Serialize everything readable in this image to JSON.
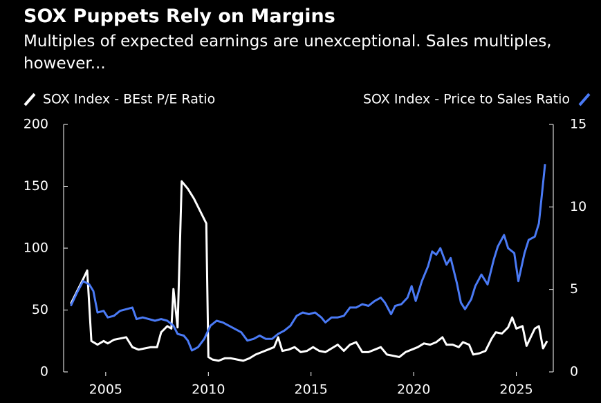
{
  "chart_data": {
    "type": "line",
    "title": "SOX Puppets Rely on Margins",
    "subtitle": "Multiples of expected earnings are unexceptional. Sales multiples, however...",
    "xlim": [
      2002.95,
      2026.8
    ],
    "xticks": [
      2005,
      2010,
      2015,
      2020,
      2025
    ],
    "ylim": [
      0,
      200
    ],
    "yticks": [
      0,
      50,
      100,
      150,
      200
    ],
    "y2lim": [
      0,
      15
    ],
    "y2ticks": [
      0,
      5,
      10,
      15
    ],
    "series": [
      {
        "name": "SOX Index - BEst P/E Ratio",
        "color": "#ffffff",
        "axis": "y",
        "x": [
          2003.3,
          2003.6,
          2003.9,
          2004.1,
          2004.3,
          2004.6,
          2004.9,
          2005.1,
          2005.4,
          2005.7,
          2006.0,
          2006.3,
          2006.6,
          2006.9,
          2007.2,
          2007.5,
          2007.7,
          2008.0,
          2008.2,
          2008.3,
          2008.5,
          2008.7,
          2009.0,
          2009.3,
          2009.6,
          2009.9,
          2010.0,
          2010.2,
          2010.5,
          2010.8,
          2011.1,
          2011.4,
          2011.7,
          2012.0,
          2012.3,
          2012.6,
          2012.9,
          2013.2,
          2013.4,
          2013.6,
          2013.9,
          2014.2,
          2014.5,
          2014.8,
          2015.1,
          2015.4,
          2015.7,
          2016.0,
          2016.3,
          2016.6,
          2016.9,
          2017.2,
          2017.5,
          2017.8,
          2018.1,
          2018.4,
          2018.7,
          2019.0,
          2019.3,
          2019.6,
          2019.9,
          2020.2,
          2020.5,
          2020.8,
          2021.1,
          2021.4,
          2021.6,
          2021.9,
          2022.2,
          2022.4,
          2022.7,
          2022.9,
          2023.2,
          2023.5,
          2023.8,
          2024.0,
          2024.3,
          2024.6,
          2024.8,
          2025.0,
          2025.3,
          2025.5,
          2025.7,
          2025.9,
          2026.1,
          2026.3,
          2026.5
        ],
        "values": [
          55,
          65,
          75,
          82,
          25,
          22,
          25,
          23,
          26,
          27,
          28,
          20,
          18,
          19,
          20,
          20,
          32,
          37,
          35,
          67,
          36,
          154,
          148,
          140,
          130,
          120,
          12,
          10,
          9,
          11,
          11,
          10,
          9,
          11,
          14,
          16,
          18,
          20,
          28,
          17,
          18,
          20,
          16,
          17,
          20,
          17,
          16,
          19,
          22,
          17,
          22,
          24,
          16,
          16,
          18,
          20,
          14,
          13,
          12,
          16,
          18,
          20,
          23,
          22,
          24,
          28,
          22,
          22,
          20,
          24,
          22,
          14,
          15,
          17,
          27,
          32,
          31,
          36,
          44,
          35,
          37,
          21,
          28,
          35,
          37,
          19,
          25
        ]
      },
      {
        "name": "SOX Index - Price to Sales Ratio",
        "color": "#4a7af5",
        "axis": "y2",
        "x": [
          2003.3,
          2003.6,
          2003.9,
          2004.2,
          2004.4,
          2004.6,
          2004.9,
          2005.1,
          2005.4,
          2005.7,
          2006.0,
          2006.3,
          2006.5,
          2006.8,
          2007.1,
          2007.4,
          2007.7,
          2008.0,
          2008.3,
          2008.5,
          2008.8,
          2009.0,
          2009.2,
          2009.5,
          2009.8,
          2010.1,
          2010.4,
          2010.7,
          2011.0,
          2011.3,
          2011.6,
          2011.9,
          2012.2,
          2012.5,
          2012.8,
          2013.1,
          2013.4,
          2013.7,
          2014.0,
          2014.3,
          2014.6,
          2014.9,
          2015.2,
          2015.5,
          2015.7,
          2016.0,
          2016.3,
          2016.6,
          2016.9,
          2017.2,
          2017.5,
          2017.8,
          2018.1,
          2018.4,
          2018.6,
          2018.9,
          2019.1,
          2019.4,
          2019.7,
          2019.9,
          2020.1,
          2020.4,
          2020.7,
          2020.9,
          2021.1,
          2021.3,
          2021.6,
          2021.8,
          2022.1,
          2022.3,
          2022.5,
          2022.8,
          2023.0,
          2023.3,
          2023.6,
          2023.9,
          2024.1,
          2024.4,
          2024.6,
          2024.9,
          2025.1,
          2025.4,
          2025.6,
          2025.9,
          2026.1,
          2026.4
        ],
        "values": [
          4.0,
          4.8,
          5.5,
          5.3,
          4.9,
          3.6,
          3.7,
          3.3,
          3.4,
          3.7,
          3.8,
          3.9,
          3.2,
          3.3,
          3.2,
          3.1,
          3.2,
          3.1,
          2.8,
          2.3,
          2.2,
          1.9,
          1.3,
          1.5,
          2.0,
          2.8,
          3.1,
          3.0,
          2.8,
          2.6,
          2.4,
          1.9,
          2.0,
          2.2,
          2.0,
          2.0,
          2.3,
          2.5,
          2.8,
          3.4,
          3.6,
          3.5,
          3.6,
          3.3,
          3.0,
          3.3,
          3.3,
          3.4,
          3.9,
          3.9,
          4.1,
          4.0,
          4.3,
          4.5,
          4.2,
          3.5,
          4.0,
          4.1,
          4.5,
          5.2,
          4.3,
          5.5,
          6.4,
          7.3,
          7.1,
          7.5,
          6.5,
          6.9,
          5.4,
          4.2,
          3.8,
          4.4,
          5.2,
          5.9,
          5.3,
          6.8,
          7.6,
          8.3,
          7.5,
          7.2,
          5.5,
          7.2,
          8.0,
          8.2,
          9.0,
          12.6
        ]
      }
    ]
  }
}
